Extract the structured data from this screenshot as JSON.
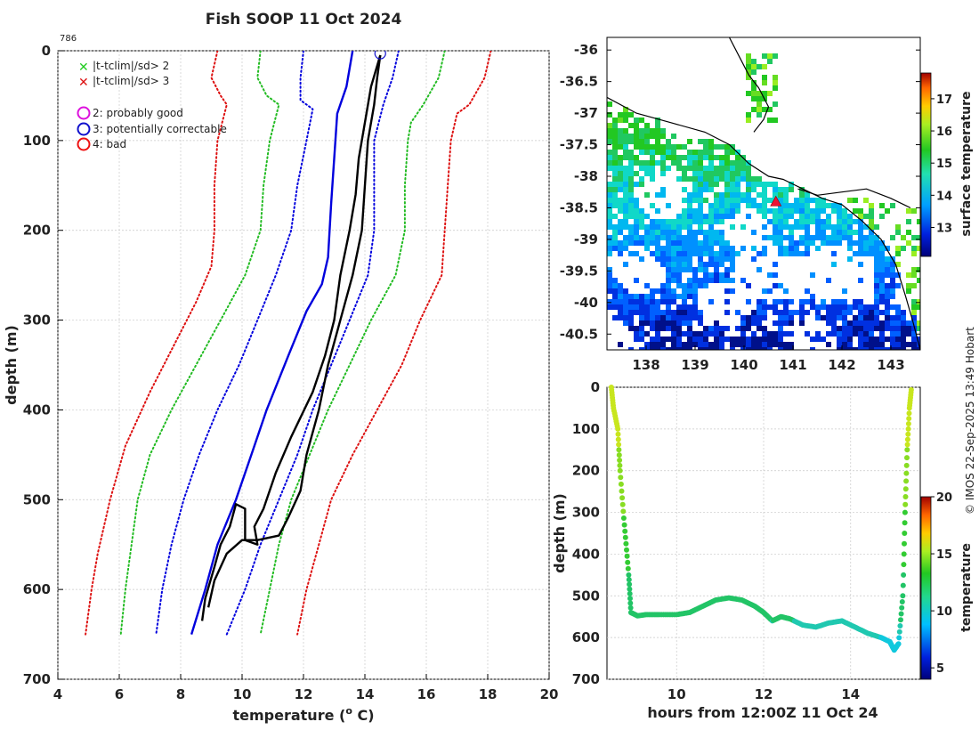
{
  "page": {
    "title": "Fish SOOP 11 Oct 2024",
    "profile_id": "786",
    "credit": "© IMOS 22-Sep-2025 13:49 Hobart"
  },
  "chart_data": [
    {
      "type": "line",
      "name": "temperature-profile",
      "xlabel": "temperature (° C)",
      "xlabel_main": "temperature (",
      "xlabel_sup": "o",
      "xlabel_tail": " C)",
      "ylabel": "depth (m)",
      "xlim": [
        4,
        20
      ],
      "ylim": [
        0,
        700
      ],
      "xticks": [
        4,
        6,
        8,
        10,
        12,
        14,
        16,
        18,
        20
      ],
      "yticks": [
        0,
        100,
        200,
        300,
        400,
        500,
        600,
        700
      ],
      "legend": [
        {
          "label": "|t-tclim|/sd> 2",
          "marker": "x",
          "color": "#22cc22"
        },
        {
          "label": "|t-tclim|/sd> 3",
          "marker": "x",
          "color": "#dd1111"
        },
        {
          "label": "2: probably good",
          "marker": "circle",
          "color": "#dd11dd"
        },
        {
          "label": "3: potentially correctable",
          "marker": "circle",
          "color": "#1111cc"
        },
        {
          "label": "4: bad",
          "marker": "circle",
          "color": "#ee1111"
        }
      ],
      "series": [
        {
          "name": "climatology-mean",
          "color": "#0000dd",
          "style": "solid",
          "points": [
            [
              13.6,
              0
            ],
            [
              13.4,
              40
            ],
            [
              13.1,
              70
            ],
            [
              13.0,
              120
            ],
            [
              12.9,
              170
            ],
            [
              12.8,
              230
            ],
            [
              12.6,
              260
            ],
            [
              12.1,
              290
            ],
            [
              11.5,
              340
            ],
            [
              10.8,
              400
            ],
            [
              10.3,
              450
            ],
            [
              9.8,
              500
            ],
            [
              9.2,
              550
            ],
            [
              8.8,
              600
            ],
            [
              8.35,
              650
            ]
          ]
        },
        {
          "name": "mean-minus-1sd",
          "color": "#0000dd",
          "style": "dotted",
          "points": [
            [
              12.0,
              0
            ],
            [
              11.9,
              30
            ],
            [
              11.9,
              55
            ],
            [
              12.3,
              65
            ],
            [
              12.1,
              100
            ],
            [
              11.8,
              150
            ],
            [
              11.6,
              200
            ],
            [
              11.1,
              250
            ],
            [
              10.5,
              300
            ],
            [
              9.9,
              350
            ],
            [
              9.2,
              400
            ],
            [
              8.6,
              450
            ],
            [
              8.1,
              500
            ],
            [
              7.7,
              550
            ],
            [
              7.4,
              600
            ],
            [
              7.2,
              650
            ]
          ]
        },
        {
          "name": "mean-plus-1sd",
          "color": "#0000dd",
          "style": "dotted",
          "points": [
            [
              15.1,
              0
            ],
            [
              14.9,
              30
            ],
            [
              14.6,
              60
            ],
            [
              14.3,
              100
            ],
            [
              14.3,
              150
            ],
            [
              14.3,
              200
            ],
            [
              14.1,
              250
            ],
            [
              13.5,
              300
            ],
            [
              12.9,
              350
            ],
            [
              12.3,
              400
            ],
            [
              11.8,
              450
            ],
            [
              11.2,
              500
            ],
            [
              10.6,
              550
            ],
            [
              10.1,
              600
            ],
            [
              9.5,
              650
            ]
          ]
        },
        {
          "name": "mean-minus-2sd",
          "color": "#22bb22",
          "style": "dotted",
          "points": [
            [
              10.6,
              0
            ],
            [
              10.5,
              30
            ],
            [
              10.8,
              50
            ],
            [
              11.2,
              60
            ],
            [
              10.9,
              100
            ],
            [
              10.7,
              150
            ],
            [
              10.6,
              200
            ],
            [
              10.1,
              250
            ],
            [
              9.3,
              300
            ],
            [
              8.5,
              350
            ],
            [
              7.7,
              400
            ],
            [
              7.0,
              450
            ],
            [
              6.6,
              500
            ],
            [
              6.4,
              550
            ],
            [
              6.2,
              600
            ],
            [
              6.05,
              650
            ]
          ]
        },
        {
          "name": "mean-plus-2sd",
          "color": "#22bb22",
          "style": "dotted",
          "points": [
            [
              16.6,
              0
            ],
            [
              16.4,
              30
            ],
            [
              15.9,
              60
            ],
            [
              15.5,
              80
            ],
            [
              15.4,
              100
            ],
            [
              15.3,
              150
            ],
            [
              15.3,
              200
            ],
            [
              15.0,
              250
            ],
            [
              14.2,
              300
            ],
            [
              13.5,
              350
            ],
            [
              12.8,
              400
            ],
            [
              12.2,
              450
            ],
            [
              11.6,
              500
            ],
            [
              11.2,
              550
            ],
            [
              10.9,
              600
            ],
            [
              10.6,
              650
            ]
          ]
        },
        {
          "name": "mean-minus-3sd",
          "color": "#dd1111",
          "style": "dotted",
          "points": [
            [
              9.2,
              0
            ],
            [
              9.0,
              30
            ],
            [
              9.3,
              50
            ],
            [
              9.5,
              60
            ],
            [
              9.2,
              100
            ],
            [
              9.1,
              150
            ],
            [
              9.1,
              200
            ],
            [
              9.0,
              240
            ],
            [
              8.5,
              280
            ],
            [
              7.9,
              320
            ],
            [
              7.0,
              380
            ],
            [
              6.2,
              440
            ],
            [
              5.7,
              500
            ],
            [
              5.3,
              560
            ],
            [
              5.1,
              600
            ],
            [
              4.9,
              650
            ]
          ]
        },
        {
          "name": "mean-plus-3sd",
          "color": "#dd1111",
          "style": "dotted",
          "points": [
            [
              18.1,
              0
            ],
            [
              17.9,
              30
            ],
            [
              17.4,
              60
            ],
            [
              17.0,
              70
            ],
            [
              16.8,
              100
            ],
            [
              16.7,
              150
            ],
            [
              16.6,
              200
            ],
            [
              16.5,
              250
            ],
            [
              15.8,
              300
            ],
            [
              15.2,
              350
            ],
            [
              14.4,
              400
            ],
            [
              13.6,
              450
            ],
            [
              12.9,
              500
            ],
            [
              12.5,
              550
            ],
            [
              12.1,
              600
            ],
            [
              11.8,
              650
            ]
          ]
        },
        {
          "name": "observed-profile-down",
          "color": "#000000",
          "style": "solid",
          "points": [
            [
              14.5,
              5
            ],
            [
              14.2,
              40
            ],
            [
              14.0,
              80
            ],
            [
              13.8,
              120
            ],
            [
              13.7,
              160
            ],
            [
              13.5,
              200
            ],
            [
              13.2,
              250
            ],
            [
              13.0,
              300
            ],
            [
              12.7,
              340
            ],
            [
              12.3,
              380
            ],
            [
              11.6,
              430
            ],
            [
              11.1,
              470
            ],
            [
              10.7,
              510
            ],
            [
              10.4,
              530
            ],
            [
              10.5,
              550
            ],
            [
              10.1,
              545
            ],
            [
              10.1,
              510
            ],
            [
              9.8,
              505
            ],
            [
              9.6,
              530
            ],
            [
              9.3,
              550
            ],
            [
              9.1,
              575
            ],
            [
              8.8,
              610
            ],
            [
              8.7,
              635
            ]
          ]
        },
        {
          "name": "observed-profile-up",
          "color": "#000000",
          "style": "solid",
          "points": [
            [
              8.9,
              620
            ],
            [
              9.1,
              590
            ],
            [
              9.5,
              560
            ],
            [
              10.0,
              545
            ],
            [
              10.5,
              545
            ],
            [
              11.2,
              540
            ],
            [
              11.5,
              520
            ],
            [
              11.9,
              490
            ],
            [
              12.1,
              450
            ],
            [
              12.5,
              400
            ],
            [
              12.8,
              350
            ],
            [
              13.2,
              300
            ],
            [
              13.6,
              250
            ],
            [
              13.9,
              200
            ],
            [
              14.0,
              150
            ],
            [
              14.1,
              100
            ],
            [
              14.3,
              60
            ],
            [
              14.4,
              30
            ],
            [
              14.5,
              5
            ]
          ]
        }
      ],
      "start_marker": {
        "x": 14.5,
        "y": 3
      }
    },
    {
      "type": "heatmap",
      "name": "surface-temperature-map",
      "xlabel": "",
      "ylabel": "",
      "colorbar_label": "surface temperature",
      "xlim": [
        137.2,
        143.6
      ],
      "ylim": [
        -40.75,
        -35.8
      ],
      "xticks": [
        138,
        139,
        140,
        141,
        142,
        143
      ],
      "yticks": [
        -36,
        -36.5,
        -37,
        -37.5,
        -38,
        -38.5,
        -39,
        -39.5,
        -40,
        -40.5
      ],
      "colorbar_range": [
        12.1,
        17.8
      ],
      "colorbar_ticks": [
        13,
        14,
        15,
        16,
        17
      ],
      "vessel_marker": {
        "lon": 140.65,
        "lat": -38.4,
        "color": "#ee1133"
      },
      "coastline": [
        [
          137.2,
          -36.75
        ],
        [
          137.8,
          -37.0
        ],
        [
          138.5,
          -37.15
        ],
        [
          139.2,
          -37.3
        ],
        [
          139.7,
          -37.5
        ],
        [
          140.1,
          -37.8
        ],
        [
          140.5,
          -38.0
        ],
        [
          140.8,
          -38.05
        ],
        [
          141.2,
          -38.2
        ],
        [
          141.6,
          -38.35
        ],
        [
          142.0,
          -38.45
        ],
        [
          142.4,
          -38.7
        ],
        [
          142.8,
          -39.0
        ],
        [
          143.1,
          -39.4
        ],
        [
          143.3,
          -39.9
        ],
        [
          143.45,
          -40.3
        ],
        [
          143.6,
          -40.75
        ]
      ],
      "coastline2": [
        [
          141.1,
          -38.2
        ],
        [
          141.5,
          -38.3
        ],
        [
          142.0,
          -38.25
        ],
        [
          142.5,
          -38.2
        ],
        [
          143.0,
          -38.35
        ],
        [
          143.4,
          -38.5
        ]
      ],
      "coastline3": [
        [
          139.7,
          -35.8
        ],
        [
          139.9,
          -36.1
        ],
        [
          140.1,
          -36.4
        ],
        [
          140.3,
          -36.6
        ],
        [
          140.5,
          -36.9
        ],
        [
          140.4,
          -37.1
        ],
        [
          140.2,
          -37.3
        ]
      ]
    },
    {
      "type": "scatter",
      "name": "depth-time-track",
      "xlabel": "hours from 12:00Z 11 Oct 24",
      "ylabel": "depth (m)",
      "colorbar_label": "temperature",
      "xlim": [
        8.4,
        15.6
      ],
      "ylim": [
        0,
        700
      ],
      "xticks": [
        10,
        12,
        14
      ],
      "yticks": [
        0,
        100,
        200,
        300,
        400,
        500,
        600,
        700
      ],
      "colorbar_range": [
        4,
        20
      ],
      "colorbar_ticks": [
        5,
        10,
        15,
        20
      ],
      "points": [
        [
          8.5,
          0
        ],
        [
          8.55,
          50
        ],
        [
          8.65,
          100
        ],
        [
          8.7,
          200
        ],
        [
          8.8,
          330
        ],
        [
          8.9,
          450
        ],
        [
          8.95,
          540
        ],
        [
          9.1,
          548
        ],
        [
          9.3,
          545
        ],
        [
          9.6,
          545
        ],
        [
          10.0,
          545
        ],
        [
          10.3,
          540
        ],
        [
          10.6,
          525
        ],
        [
          10.9,
          510
        ],
        [
          11.2,
          505
        ],
        [
          11.5,
          510
        ],
        [
          11.8,
          525
        ],
        [
          12.0,
          540
        ],
        [
          12.2,
          560
        ],
        [
          12.4,
          550
        ],
        [
          12.6,
          555
        ],
        [
          12.9,
          570
        ],
        [
          13.2,
          575
        ],
        [
          13.5,
          565
        ],
        [
          13.8,
          560
        ],
        [
          14.1,
          575
        ],
        [
          14.4,
          590
        ],
        [
          14.7,
          600
        ],
        [
          14.9,
          610
        ],
        [
          15.0,
          630
        ],
        [
          15.1,
          615
        ],
        [
          15.2,
          500
        ],
        [
          15.25,
          300
        ],
        [
          15.3,
          150
        ],
        [
          15.35,
          50
        ],
        [
          15.4,
          0
        ]
      ]
    }
  ]
}
